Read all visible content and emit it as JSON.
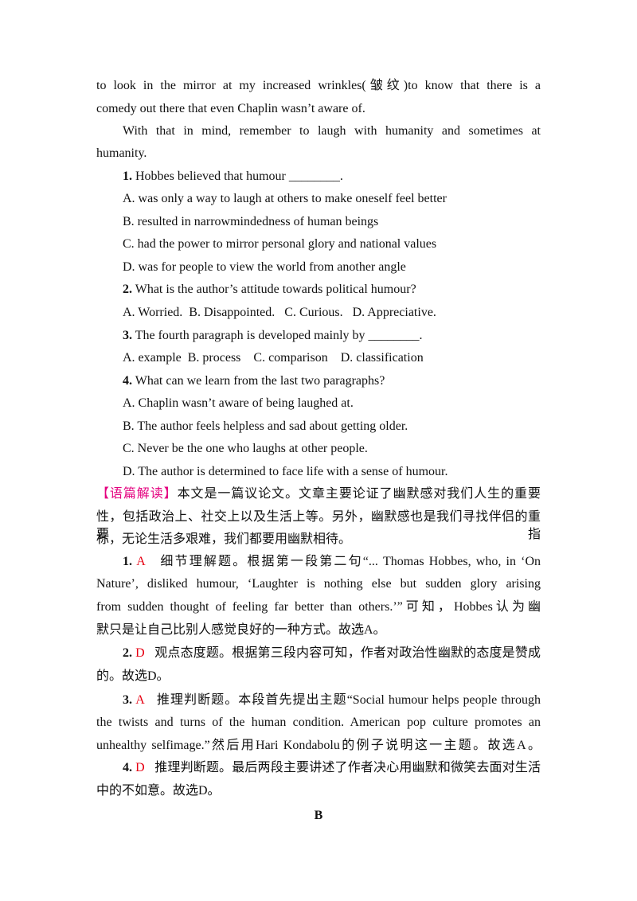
{
  "passage_end": [
    "to look in the mirror at my increased wrinkles(皱纹)to know that there is a",
    "comedy out there that even Chaplin wasn’t aware of.",
    "With that in mind, remember to laugh with humanity and sometimes at",
    "humanity."
  ],
  "questions": [
    {
      "number": "1.",
      "stem": "Hobbes believed that humour ________.",
      "options": [
        "A. was only a way to laugh at others to make oneself feel better",
        "B. resulted in narrowmindedness of human beings",
        "C. had the power to mirror personal glory and national values",
        "D. was for people to view the world from another angle"
      ]
    },
    {
      "number": "2.",
      "stem": "What is the author’s attitude towards political humour?",
      "options": [
        "A. Worried.  B. Disappointed.   C. Curious.   D. Appreciative."
      ]
    },
    {
      "number": "3.",
      "stem": "The fourth paragraph is developed mainly by ________.",
      "options": [
        "A. example  B. process    C. comparison    D. classification"
      ]
    },
    {
      "number": "4.",
      "stem": "What can we learn from the last two paragraphs?",
      "options": [
        "A. Chaplin wasn’t aware of being laughed at.",
        "B. The author feels helpless and sad about getting older.",
        "C. Never be the one who laughs at other people.",
        "D. The author is determined to face life with a sense of humour."
      ]
    }
  ],
  "analysis": {
    "label": "【语篇解读】",
    "lines": [
      "本文是一篇议论文。文章主要论证了幽默感对我们人生的重要",
      "性，包括政治上、社交上以及生活上等。另外，幽默感也是我们寻找伴侣的重要指",
      "标，无论生活多艰难，我们都要用幽默相待。"
    ]
  },
  "answers": [
    {
      "number": "1.",
      "letter": "A",
      "lines": [
        "细节理解题。根据第一段第二句“... Thomas Hobbes, who, in ‘On",
        "Nature’, disliked humour, ‘Laughter is nothing else but sudden glory arising",
        "from sudden thought of feeling far better than others.’”可知，Hobbes认为幽",
        "默只是让自己比别人感觉良好的一种方式。故选A。"
      ]
    },
    {
      "number": "2.",
      "letter": "D",
      "lines": [
        "观点态度题。根据第三段内容可知，作者对政治性幽默的态度是赞成",
        "的。故选D。"
      ]
    },
    {
      "number": "3.",
      "letter": "A",
      "lines": [
        "推理判断题。本段首先提出主题“Social humour helps people through",
        "the twists and turns of the human condition. American pop culture promotes an",
        "unhealthy selfimage.”然后用Hari Kondabolu的例子说明这一主题。故选A。"
      ]
    },
    {
      "number": "4.",
      "letter": "D",
      "lines": [
        "推理判断题。最后两段主要讲述了作者决心用幽默和微笑去面对生活",
        "中的不如意。故选D。"
      ]
    }
  ],
  "section": "B"
}
